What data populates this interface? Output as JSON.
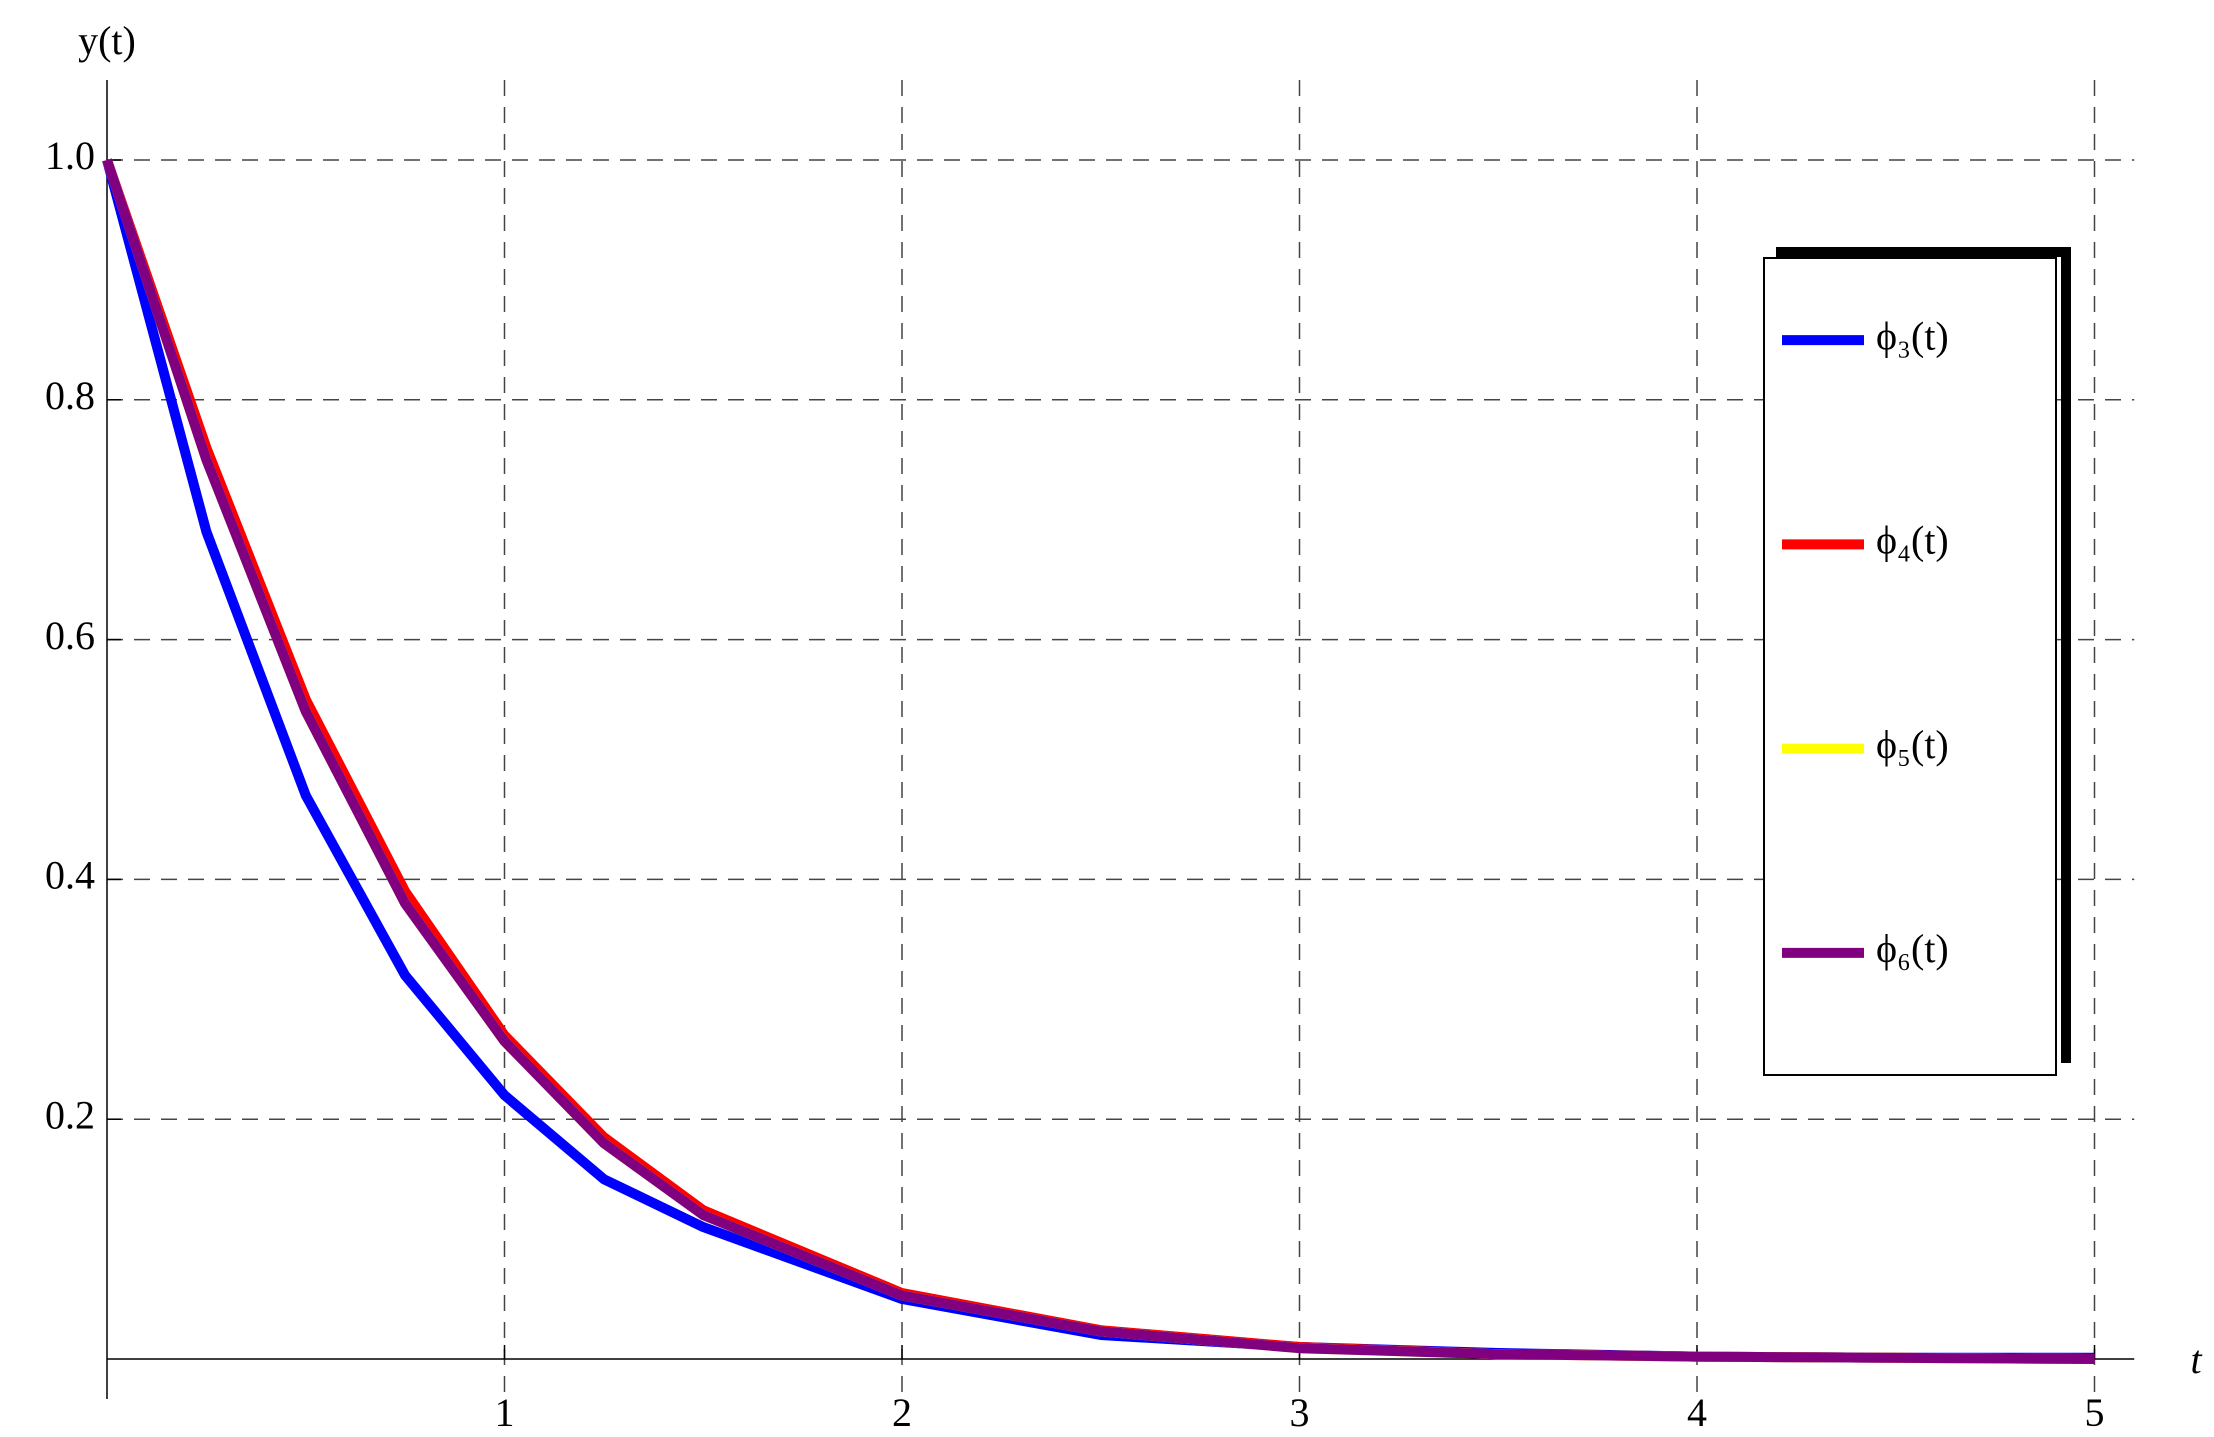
{
  "chart_data": {
    "type": "line",
    "x_label": "t",
    "y_label": "y(t)",
    "x": [
      0,
      0.25,
      0.5,
      0.75,
      1,
      1.25,
      1.5,
      2,
      2.5,
      3,
      3.5,
      4,
      4.5,
      5
    ],
    "series": [
      {
        "name": "ϕ₃(t)",
        "color": "#0000ff",
        "values": [
          1,
          0.69,
          0.47,
          0.32,
          0.22,
          0.15,
          0.11,
          0.05,
          0.02,
          0.01,
          0.005,
          0.002,
          0.001,
          0.001
        ]
      },
      {
        "name": "ϕ₄(t)",
        "color": "#ff0000",
        "values": [
          1,
          0.76,
          0.55,
          0.39,
          0.27,
          0.185,
          0.124,
          0.055,
          0.024,
          0.01,
          0.004,
          0.002,
          0.001,
          0
        ]
      },
      {
        "name": "ϕ₅(t)",
        "color": "#ffff00",
        "values": [
          1,
          0.75,
          0.54,
          0.38,
          0.265,
          0.18,
          0.12,
          0.053,
          0.023,
          0.009,
          0.004,
          0.002,
          0.001,
          0
        ]
      },
      {
        "name": "ϕ₆(t)",
        "color": "#800080",
        "values": [
          1,
          0.75,
          0.54,
          0.38,
          0.265,
          0.18,
          0.12,
          0.053,
          0.023,
          0.009,
          0.004,
          0.002,
          0.001,
          0
        ]
      }
    ],
    "xlim": [
      0,
      5.1
    ],
    "ylim": [
      0,
      1.05
    ],
    "xticks": [
      1,
      2,
      3,
      4,
      5
    ],
    "yticks": [
      0.2,
      0.4,
      0.6,
      0.8,
      {
        "value": 1,
        "label": "1.0"
      }
    ],
    "grid": true,
    "legend": "right"
  }
}
